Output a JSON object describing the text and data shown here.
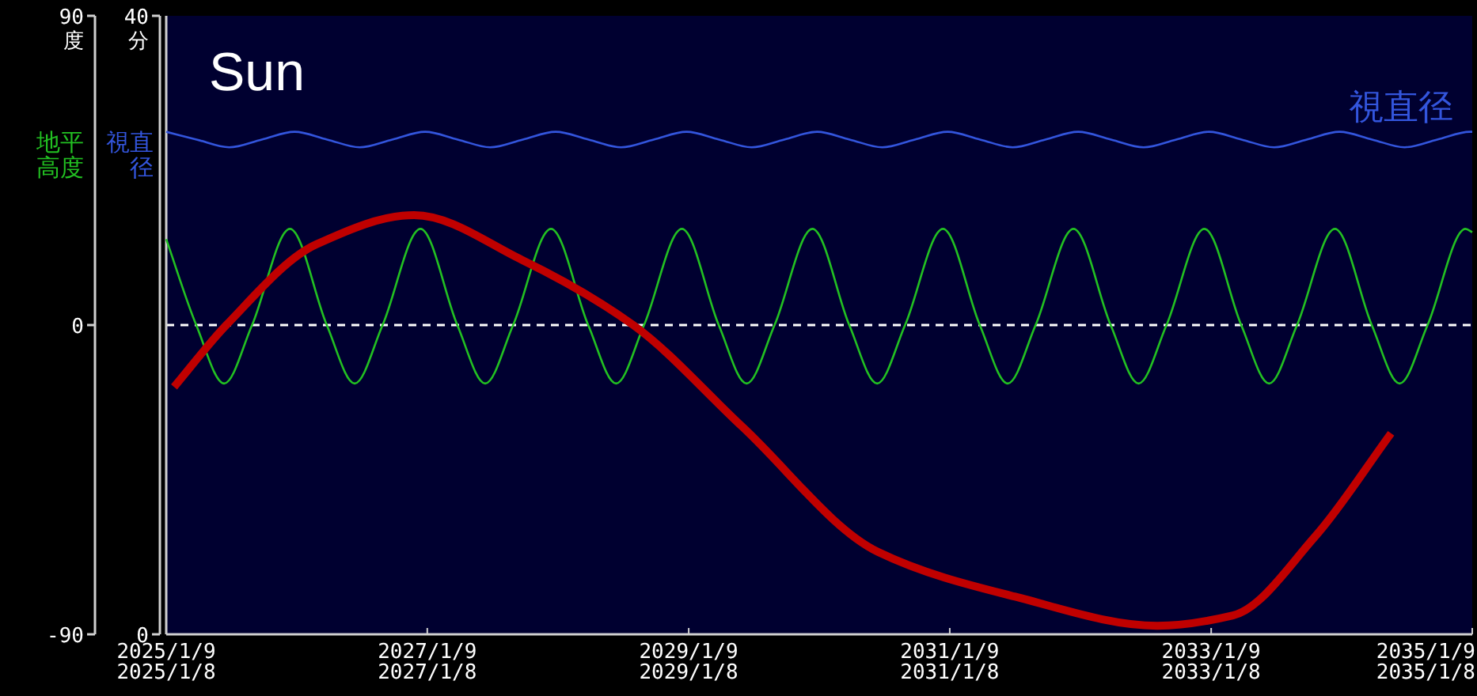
{
  "chart_data": {
    "type": "line",
    "title": "Sun",
    "ylabel": "地平高度",
    "y2label": "視直径",
    "xlim": [
      "2025-01-09",
      "2035-01-09"
    ],
    "xticks": [
      {
        "value": "2025-01-09",
        "label": "2025/1/9\n2025/1/8"
      },
      {
        "value": "2027-01-09",
        "label": "2027/1/9\n2027/1/8"
      },
      {
        "value": "2029-01-09",
        "label": "2029/1/9\n2029/1/8"
      },
      {
        "value": "2031-01-09",
        "label": "2031/1/9\n2031/1/8"
      },
      {
        "value": "2033-01-09",
        "label": "2033/1/9\n2033/1/8"
      },
      {
        "value": "2035-01-09",
        "label": "2035/1/9\n2035/1/8"
      }
    ],
    "ylim": [
      -90,
      90
    ],
    "yticks": [
      90,
      0,
      -90
    ],
    "y2lim": [
      0,
      40
    ],
    "y2ticks": [
      40,
      0
    ],
    "annotations": [
      "度",
      "分"
    ],
    "ref_lines": [
      {
        "axis": "y",
        "value": 0,
        "color": "#ffffff",
        "line_style": "dashed"
      }
    ],
    "series": [
      {
        "color": "#22c022",
        "x": [
          "2025-01-09",
          "2025-04-03",
          "2025-06-20",
          "2025-09-06",
          "2025-12-21",
          "2026-04-03",
          "2026-06-20",
          "2026-09-06",
          "2026-12-21",
          "2027-04-03",
          "2027-06-20",
          "2027-09-06",
          "2027-12-21",
          "2028-04-03",
          "2028-06-20",
          "2028-09-06",
          "2028-12-21",
          "2029-04-03",
          "2029-06-20",
          "2029-09-06",
          "2029-12-21",
          "2030-04-03",
          "2030-06-20",
          "2030-09-06",
          "2030-12-21",
          "2031-04-03",
          "2031-06-20",
          "2031-09-06",
          "2031-12-21",
          "2032-04-03",
          "2032-06-20",
          "2032-09-06",
          "2032-12-21",
          "2033-04-03",
          "2033-06-20",
          "2033-09-06",
          "2033-12-21",
          "2034-04-03",
          "2034-06-20",
          "2034-09-06",
          "2034-12-21",
          "2035-01-09"
        ],
        "values": [
          25,
          0,
          -17,
          0,
          28,
          0,
          -17,
          0,
          28,
          0,
          -17,
          0,
          28,
          0,
          -17,
          0,
          28,
          0,
          -17,
          0,
          28,
          0,
          -17,
          0,
          28,
          0,
          -17,
          0,
          28,
          0,
          -17,
          0,
          28,
          0,
          -17,
          0,
          28,
          0,
          -17,
          0,
          28,
          27
        ]
      },
      {
        "name": "視直径",
        "color": "#3355dd",
        "axis": "y2",
        "x": [
          "2025-01-09",
          "2025-04-04",
          "2025-07-04",
          "2025-10-03",
          "2026-01-03",
          "2026-04-04",
          "2026-07-04",
          "2026-10-03",
          "2027-01-03",
          "2027-04-04",
          "2027-07-04",
          "2027-10-03",
          "2028-01-03",
          "2028-04-04",
          "2028-07-04",
          "2028-10-03",
          "2029-01-03",
          "2029-04-04",
          "2029-07-04",
          "2029-10-03",
          "2030-01-03",
          "2030-04-04",
          "2030-07-04",
          "2030-10-03",
          "2031-01-03",
          "2031-04-04",
          "2031-07-04",
          "2031-10-03",
          "2032-01-03",
          "2032-04-04",
          "2032-07-04",
          "2032-10-03",
          "2033-01-03",
          "2033-04-04",
          "2033-07-04",
          "2033-10-03",
          "2034-01-03",
          "2034-04-04",
          "2034-07-04",
          "2034-10-03",
          "2035-01-03",
          "2035-01-09"
        ],
        "values": [
          32.5,
          32.0,
          31.5,
          32.0,
          32.5,
          32.0,
          31.5,
          32.0,
          32.5,
          32.0,
          31.5,
          32.0,
          32.5,
          32.0,
          31.5,
          32.0,
          32.5,
          32.0,
          31.5,
          32.0,
          32.5,
          32.0,
          31.5,
          32.0,
          32.5,
          32.0,
          31.5,
          32.0,
          32.5,
          32.0,
          31.5,
          32.0,
          32.5,
          32.0,
          31.5,
          32.0,
          32.5,
          32.0,
          31.5,
          32.0,
          32.5,
          32.5
        ]
      },
      {
        "color": "#c00000",
        "x": [
          "2025-01-31",
          "2025-06-26",
          "2026-03-05",
          "2026-12-03",
          "2027-09-30",
          "2028-08-07",
          "2029-06-07",
          "2030-06-22",
          "2031-07-09",
          "2032-08-11",
          "2033-03-11",
          "2033-10-27",
          "2034-05-27"
        ],
        "values": [
          -18,
          0,
          23.5,
          32,
          19,
          0,
          -29.5,
          -66,
          -79,
          -87.5,
          -84.5,
          -61.5,
          -31.5
        ]
      }
    ]
  }
}
